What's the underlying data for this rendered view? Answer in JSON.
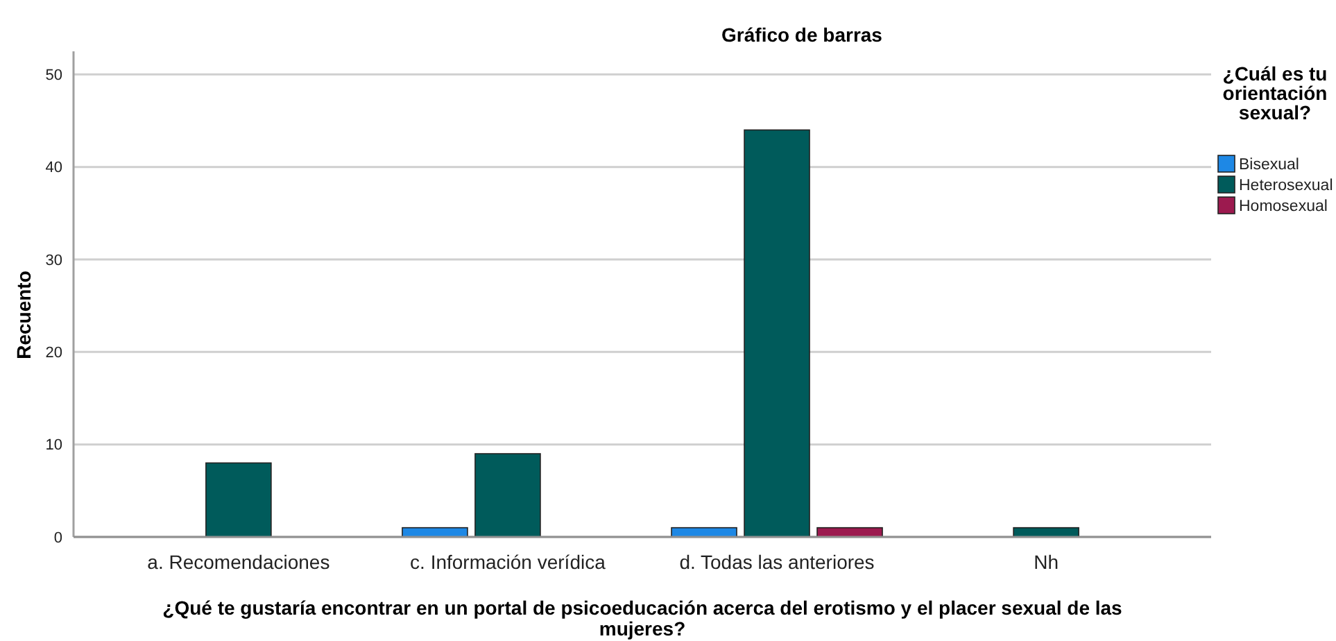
{
  "chart_data": {
    "type": "bar",
    "title": "Gráfico de barras",
    "xlabel": "¿Qué te gustaría encontrar en un portal de psicoeducación acerca del erotismo y el placer sexual de las mujeres?",
    "ylabel": "Recuento",
    "legend_title": "¿Cuál es tu orientación sexual?",
    "categories": [
      "a. Recomendaciones",
      "c. Información verídica",
      "d. Todas las anteriores",
      "Nh"
    ],
    "series": [
      {
        "name": "Bisexual",
        "color": "#1e88e5",
        "values": [
          null,
          1,
          1,
          null
        ]
      },
      {
        "name": "Heterosexual",
        "color": "#005b5b",
        "values": [
          8,
          9,
          44,
          1
        ]
      },
      {
        "name": "Homosexual",
        "color": "#9c1a4f",
        "values": [
          null,
          null,
          1,
          null
        ]
      }
    ],
    "ylim": [
      0,
      52.5
    ],
    "yticks": [
      0,
      10,
      20,
      30,
      40,
      50
    ],
    "grid": "y",
    "legend": "top right"
  }
}
